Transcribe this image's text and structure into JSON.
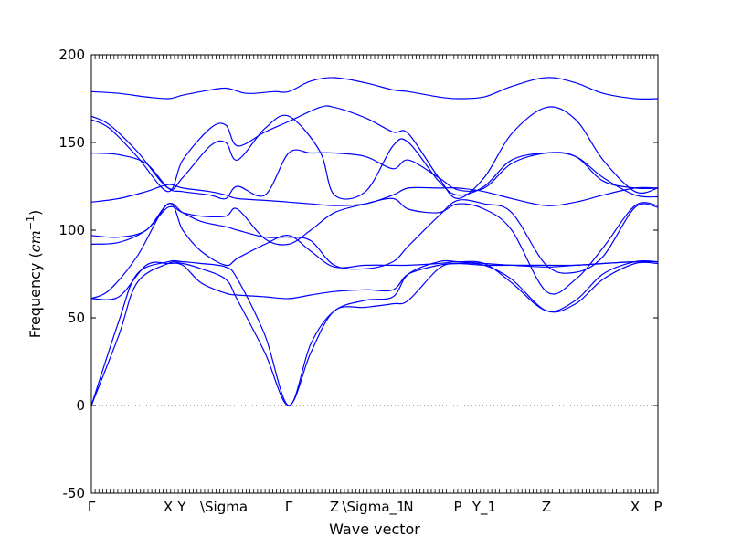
{
  "chart_data": {
    "type": "line",
    "xlabel": "Wave vector",
    "ylabel": "Frequency",
    "ylabel_unit": "cm",
    "ylabel_unit_exp": "−1",
    "ylim": [
      -50,
      200
    ],
    "yticks": [
      -50,
      0,
      50,
      100,
      150,
      200
    ],
    "xlim": [
      0,
      6.2
    ],
    "xticks": [
      {
        "x": 0.0,
        "label": "Γ"
      },
      {
        "x": 0.84,
        "label": "X"
      },
      {
        "x": 0.99,
        "label": "Y"
      },
      {
        "x": 1.45,
        "label": "\\Sigma"
      },
      {
        "x": 2.16,
        "label": "Γ"
      },
      {
        "x": 2.66,
        "label": "Z"
      },
      {
        "x": 3.09,
        "label": "\\Sigma_1"
      },
      {
        "x": 3.47,
        "label": "N"
      },
      {
        "x": 4.01,
        "label": "P"
      },
      {
        "x": 4.3,
        "label": "Y_1"
      },
      {
        "x": 4.98,
        "label": "Z"
      },
      {
        "x": 5.95,
        "label": "X"
      },
      {
        "x": 6.2,
        "label": "P"
      }
    ],
    "zero_line": true,
    "line_color": "#0000ff",
    "branches": [
      {
        "x": [
          0,
          0.3,
          0.6,
          0.84,
          1.0,
          1.2,
          1.47,
          1.7,
          2.0,
          2.16,
          2.4,
          2.66,
          3.0,
          3.3,
          3.47,
          3.8,
          4.01,
          4.3,
          4.6,
          4.98,
          5.3,
          5.6,
          5.95,
          6.2
        ],
        "y": [
          179,
          178,
          176,
          175,
          177,
          179,
          181,
          178,
          179,
          179,
          185,
          187,
          184,
          180,
          179,
          176,
          175,
          176,
          182,
          187,
          184,
          178,
          175,
          175
        ]
      },
      {
        "x": [
          0,
          0.2,
          0.5,
          0.84,
          1.0,
          1.3,
          1.47,
          1.6,
          1.9,
          2.16,
          2.5,
          2.66,
          3.0,
          3.3,
          3.47,
          3.8,
          4.01,
          4.3,
          4.6,
          4.98,
          5.3,
          5.6,
          5.95,
          6.2
        ],
        "y": [
          163,
          158,
          142,
          122,
          140,
          158,
          160,
          148,
          156,
          162,
          170,
          170,
          164,
          156,
          155,
          130,
          118,
          130,
          155,
          170,
          163,
          140,
          122,
          124
        ]
      },
      {
        "x": [
          0,
          0.2,
          0.5,
          0.84,
          1.0,
          1.3,
          1.47,
          1.6,
          1.9,
          2.16,
          2.5,
          2.66,
          3.0,
          3.3,
          3.47,
          3.8,
          4.01,
          4.3,
          4.6,
          4.98,
          5.3,
          5.6,
          5.95,
          6.2
        ],
        "y": [
          165,
          160,
          145,
          124,
          130,
          148,
          150,
          140,
          158,
          165,
          145,
          120,
          122,
          148,
          150,
          128,
          120,
          125,
          140,
          144,
          142,
          130,
          120,
          119
        ]
      },
      {
        "x": [
          0,
          0.3,
          0.6,
          0.84,
          1.0,
          1.3,
          1.47,
          1.6,
          1.9,
          2.16,
          2.4,
          2.66,
          3.0,
          3.3,
          3.47,
          3.8,
          4.01,
          4.3,
          4.6,
          4.98,
          5.3,
          5.6,
          5.95,
          6.2
        ],
        "y": [
          144,
          143,
          138,
          124,
          122,
          120,
          118,
          125,
          120,
          144,
          144,
          144,
          142,
          135,
          140,
          130,
          123,
          124,
          138,
          144,
          142,
          128,
          124,
          124
        ]
      },
      {
        "x": [
          0,
          0.3,
          0.6,
          0.84,
          1.0,
          1.3,
          1.47,
          1.6,
          1.9,
          2.16,
          2.4,
          2.66,
          3.0,
          3.3,
          3.47,
          3.8,
          4.01,
          4.3,
          4.6,
          4.98,
          5.3,
          5.6,
          5.95,
          6.2
        ],
        "y": [
          116,
          118,
          122,
          126,
          124,
          122,
          120,
          118,
          117,
          116,
          115,
          114,
          115,
          120,
          124,
          124,
          124,
          122,
          118,
          114,
          116,
          120,
          124,
          124
        ]
      },
      {
        "x": [
          0,
          0.3,
          0.6,
          0.84,
          1.0,
          1.2,
          1.47,
          1.6,
          1.9,
          2.16,
          2.4,
          2.66,
          3.0,
          3.3,
          3.47,
          3.8,
          4.01,
          4.3,
          4.6,
          4.98,
          5.3,
          5.6,
          5.95,
          6.2
        ],
        "y": [
          97,
          96,
          100,
          115,
          110,
          105,
          102,
          100,
          96,
          96,
          94,
          80,
          78,
          82,
          91,
          108,
          117,
          115,
          110,
          80,
          76,
          85,
          113,
          113
        ]
      },
      {
        "x": [
          0,
          0.3,
          0.6,
          0.84,
          1.0,
          1.2,
          1.47,
          1.6,
          1.9,
          2.16,
          2.4,
          2.66,
          3.0,
          3.3,
          3.47,
          3.8,
          4.01,
          4.3,
          4.6,
          4.98,
          5.3,
          5.6,
          5.95,
          6.2
        ],
        "y": [
          92,
          93,
          100,
          113,
          110,
          108,
          108,
          112,
          95,
          92,
          100,
          110,
          115,
          118,
          112,
          110,
          115,
          112,
          100,
          65,
          72,
          90,
          114,
          114
        ]
      },
      {
        "x": [
          0,
          0.2,
          0.5,
          0.84,
          1.0,
          1.2,
          1.47,
          1.6,
          1.9,
          2.16,
          2.4,
          2.66,
          3.0,
          3.3,
          3.47,
          3.8,
          4.01,
          4.3,
          4.6,
          4.98,
          5.3,
          5.6,
          5.95,
          6.2
        ],
        "y": [
          61,
          66,
          85,
          115,
          100,
          88,
          80,
          84,
          92,
          97,
          88,
          79,
          80,
          80,
          80,
          81,
          82,
          81,
          80,
          79,
          80,
          81,
          82,
          82
        ]
      },
      {
        "x": [
          0,
          0.3,
          0.5,
          0.84,
          1.0,
          1.2,
          1.47,
          1.6,
          1.9,
          2.16,
          2.4,
          2.66,
          3.0,
          3.3,
          3.47,
          3.8,
          4.01,
          4.3,
          4.6,
          4.98,
          5.3,
          5.6,
          5.95,
          6.2
        ],
        "y": [
          0,
          48,
          75,
          82,
          82,
          81,
          79,
          72,
          40,
          0,
          35,
          54,
          60,
          62,
          75,
          82,
          82,
          81,
          70,
          54,
          60,
          75,
          82,
          82
        ]
      },
      {
        "x": [
          0,
          0.3,
          0.5,
          0.84,
          1.0,
          1.2,
          1.47,
          1.6,
          1.9,
          2.16,
          2.4,
          2.66,
          3.0,
          3.3,
          3.47,
          3.8,
          4.01,
          4.3,
          4.6,
          4.98,
          5.3,
          5.6,
          5.95,
          6.2
        ],
        "y": [
          0,
          40,
          70,
          81,
          81,
          78,
          72,
          60,
          30,
          0,
          30,
          54,
          56,
          58,
          60,
          78,
          81,
          80,
          72,
          54,
          58,
          72,
          81,
          81
        ]
      },
      {
        "x": [
          0,
          0.3,
          0.6,
          0.84,
          1.0,
          1.2,
          1.47,
          1.6,
          1.9,
          2.16,
          2.4,
          2.66,
          3.0,
          3.3,
          3.47,
          3.8,
          4.01,
          4.3,
          4.6,
          4.98,
          5.3,
          5.6,
          5.95,
          6.2
        ],
        "y": [
          61,
          62,
          80,
          81,
          80,
          70,
          64,
          63,
          62,
          61,
          63,
          65,
          66,
          66,
          75,
          80,
          81,
          80,
          80,
          80,
          80,
          81,
          82,
          82
        ]
      }
    ]
  }
}
